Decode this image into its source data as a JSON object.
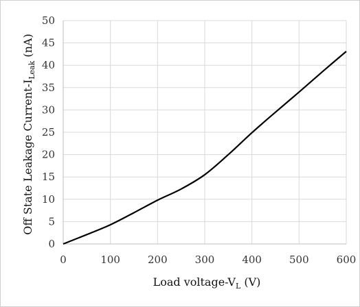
{
  "chart_data": {
    "type": "line",
    "title": "",
    "xlabel": "Load voltage-V",
    "xlabel_sub": "L",
    "xlabel_suffix": " (V)",
    "ylabel": "Off State Leakage Current-I",
    "ylabel_sub": "Leak",
    "ylabel_suffix": " (nA)",
    "xlim": [
      0,
      600
    ],
    "ylim": [
      0,
      50
    ],
    "xticks": [
      0,
      100,
      200,
      300,
      400,
      500,
      600
    ],
    "yticks": [
      0,
      5,
      10,
      15,
      20,
      25,
      30,
      35,
      40,
      45,
      50
    ],
    "grid": true,
    "legend": "none",
    "series": [
      {
        "color": "#000000",
        "x": [
          0,
          50,
          100,
          150,
          200,
          250,
          300,
          350,
          400,
          450,
          500,
          550,
          600
        ],
        "y": [
          0,
          2.1,
          4.3,
          7.0,
          9.8,
          12.3,
          15.5,
          20.0,
          24.9,
          29.5,
          34.0,
          38.6,
          43.1
        ]
      }
    ]
  }
}
